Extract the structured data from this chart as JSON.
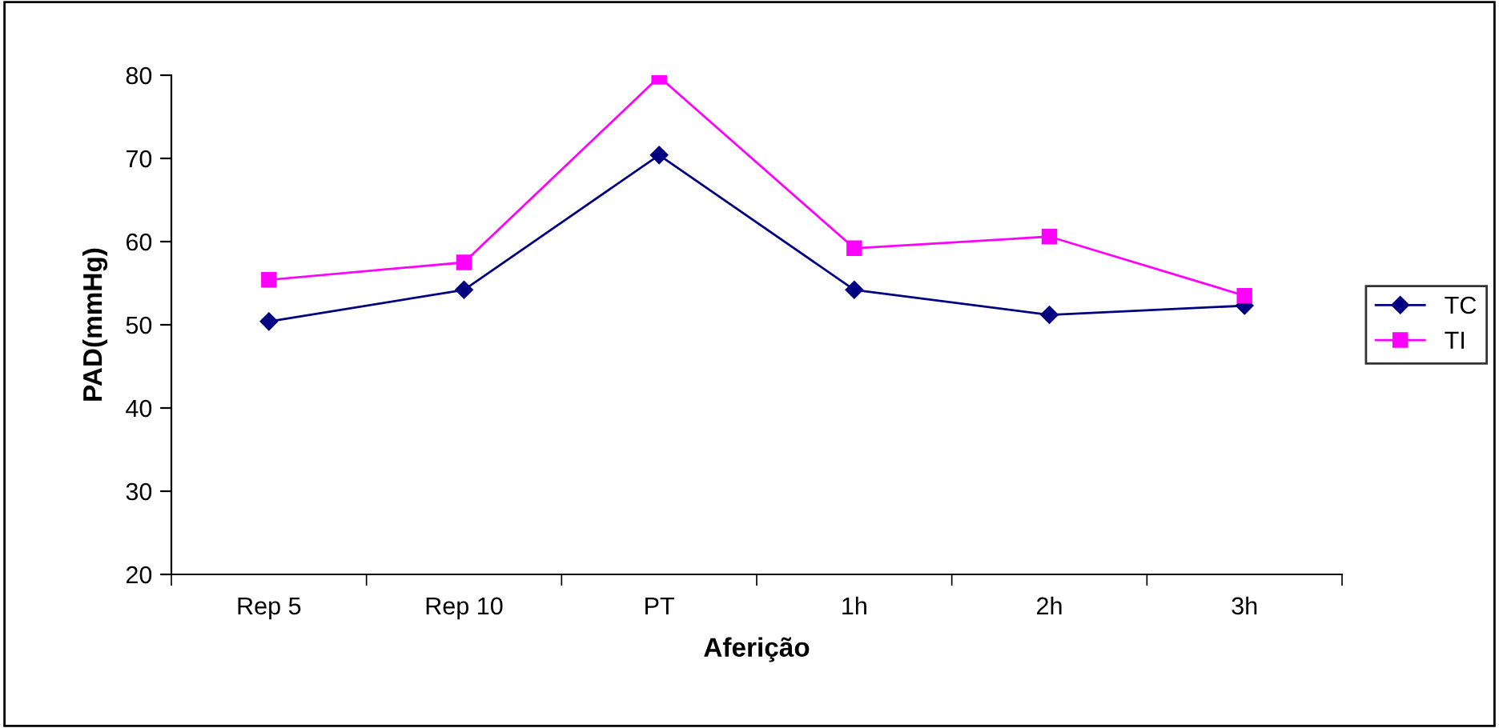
{
  "chart_data": {
    "type": "line",
    "xlabel": "Aferição",
    "ylabel": "PAD(mmHg)",
    "categories": [
      "Rep 5",
      "Rep 10",
      "PT",
      "1h",
      "2h",
      "3h"
    ],
    "series": [
      {
        "name": "TC",
        "color": "#000080",
        "marker": "diamond",
        "values": [
          50.4,
          54.2,
          70.4,
          54.2,
          51.2,
          52.3
        ]
      },
      {
        "name": "TI",
        "color": "#ff00ff",
        "marker": "square",
        "values": [
          55.4,
          57.5,
          79.8,
          59.2,
          60.6,
          53.5
        ]
      }
    ],
    "ylim": [
      20,
      80
    ],
    "yticks": [
      20,
      30,
      40,
      50,
      60,
      70,
      80
    ],
    "grid": false,
    "legend": "right"
  }
}
